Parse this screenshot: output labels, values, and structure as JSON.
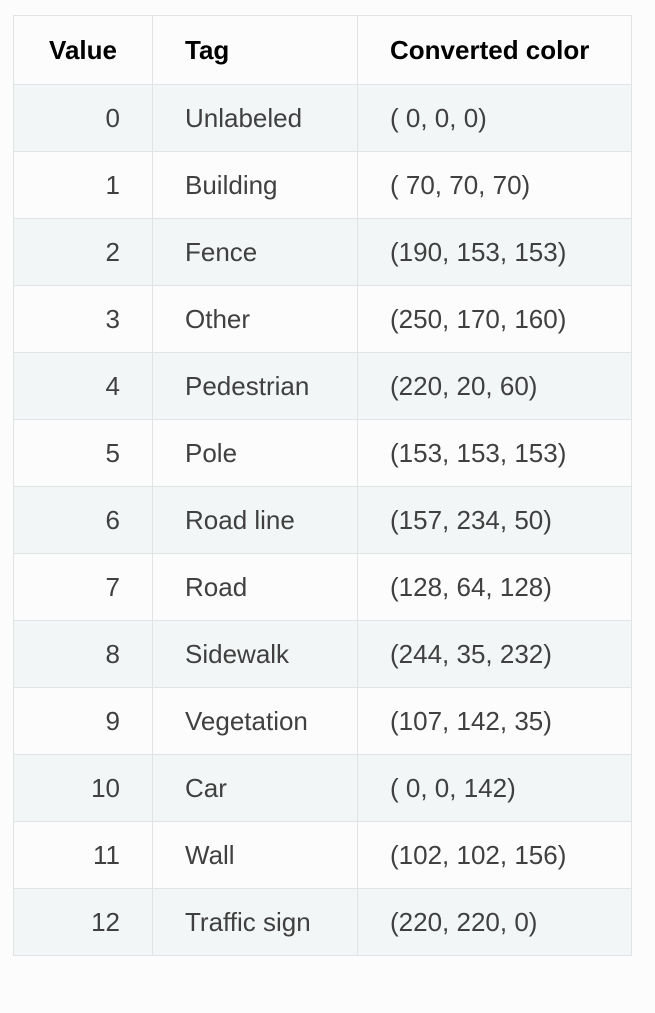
{
  "table": {
    "headers": {
      "value": "Value",
      "tag": "Tag",
      "color": "Converted color"
    },
    "rows": [
      {
        "value": "0",
        "tag": "Unlabeled",
        "color": "( 0, 0, 0)"
      },
      {
        "value": "1",
        "tag": "Building",
        "color": "( 70, 70, 70)"
      },
      {
        "value": "2",
        "tag": "Fence",
        "color": "(190, 153, 153)"
      },
      {
        "value": "3",
        "tag": "Other",
        "color": "(250, 170, 160)"
      },
      {
        "value": "4",
        "tag": "Pedestrian",
        "color": "(220, 20, 60)"
      },
      {
        "value": "5",
        "tag": "Pole",
        "color": "(153, 153, 153)"
      },
      {
        "value": "6",
        "tag": "Road line",
        "color": "(157, 234, 50)"
      },
      {
        "value": "7",
        "tag": "Road",
        "color": "(128, 64, 128)"
      },
      {
        "value": "8",
        "tag": "Sidewalk",
        "color": "(244, 35, 232)"
      },
      {
        "value": "9",
        "tag": "Vegetation",
        "color": "(107, 142, 35)"
      },
      {
        "value": "10",
        "tag": "Car",
        "color": "( 0, 0, 142)"
      },
      {
        "value": "11",
        "tag": "Wall",
        "color": "(102, 102, 156)"
      },
      {
        "value": "12",
        "tag": "Traffic sign",
        "color": "(220, 220, 0)"
      }
    ]
  }
}
